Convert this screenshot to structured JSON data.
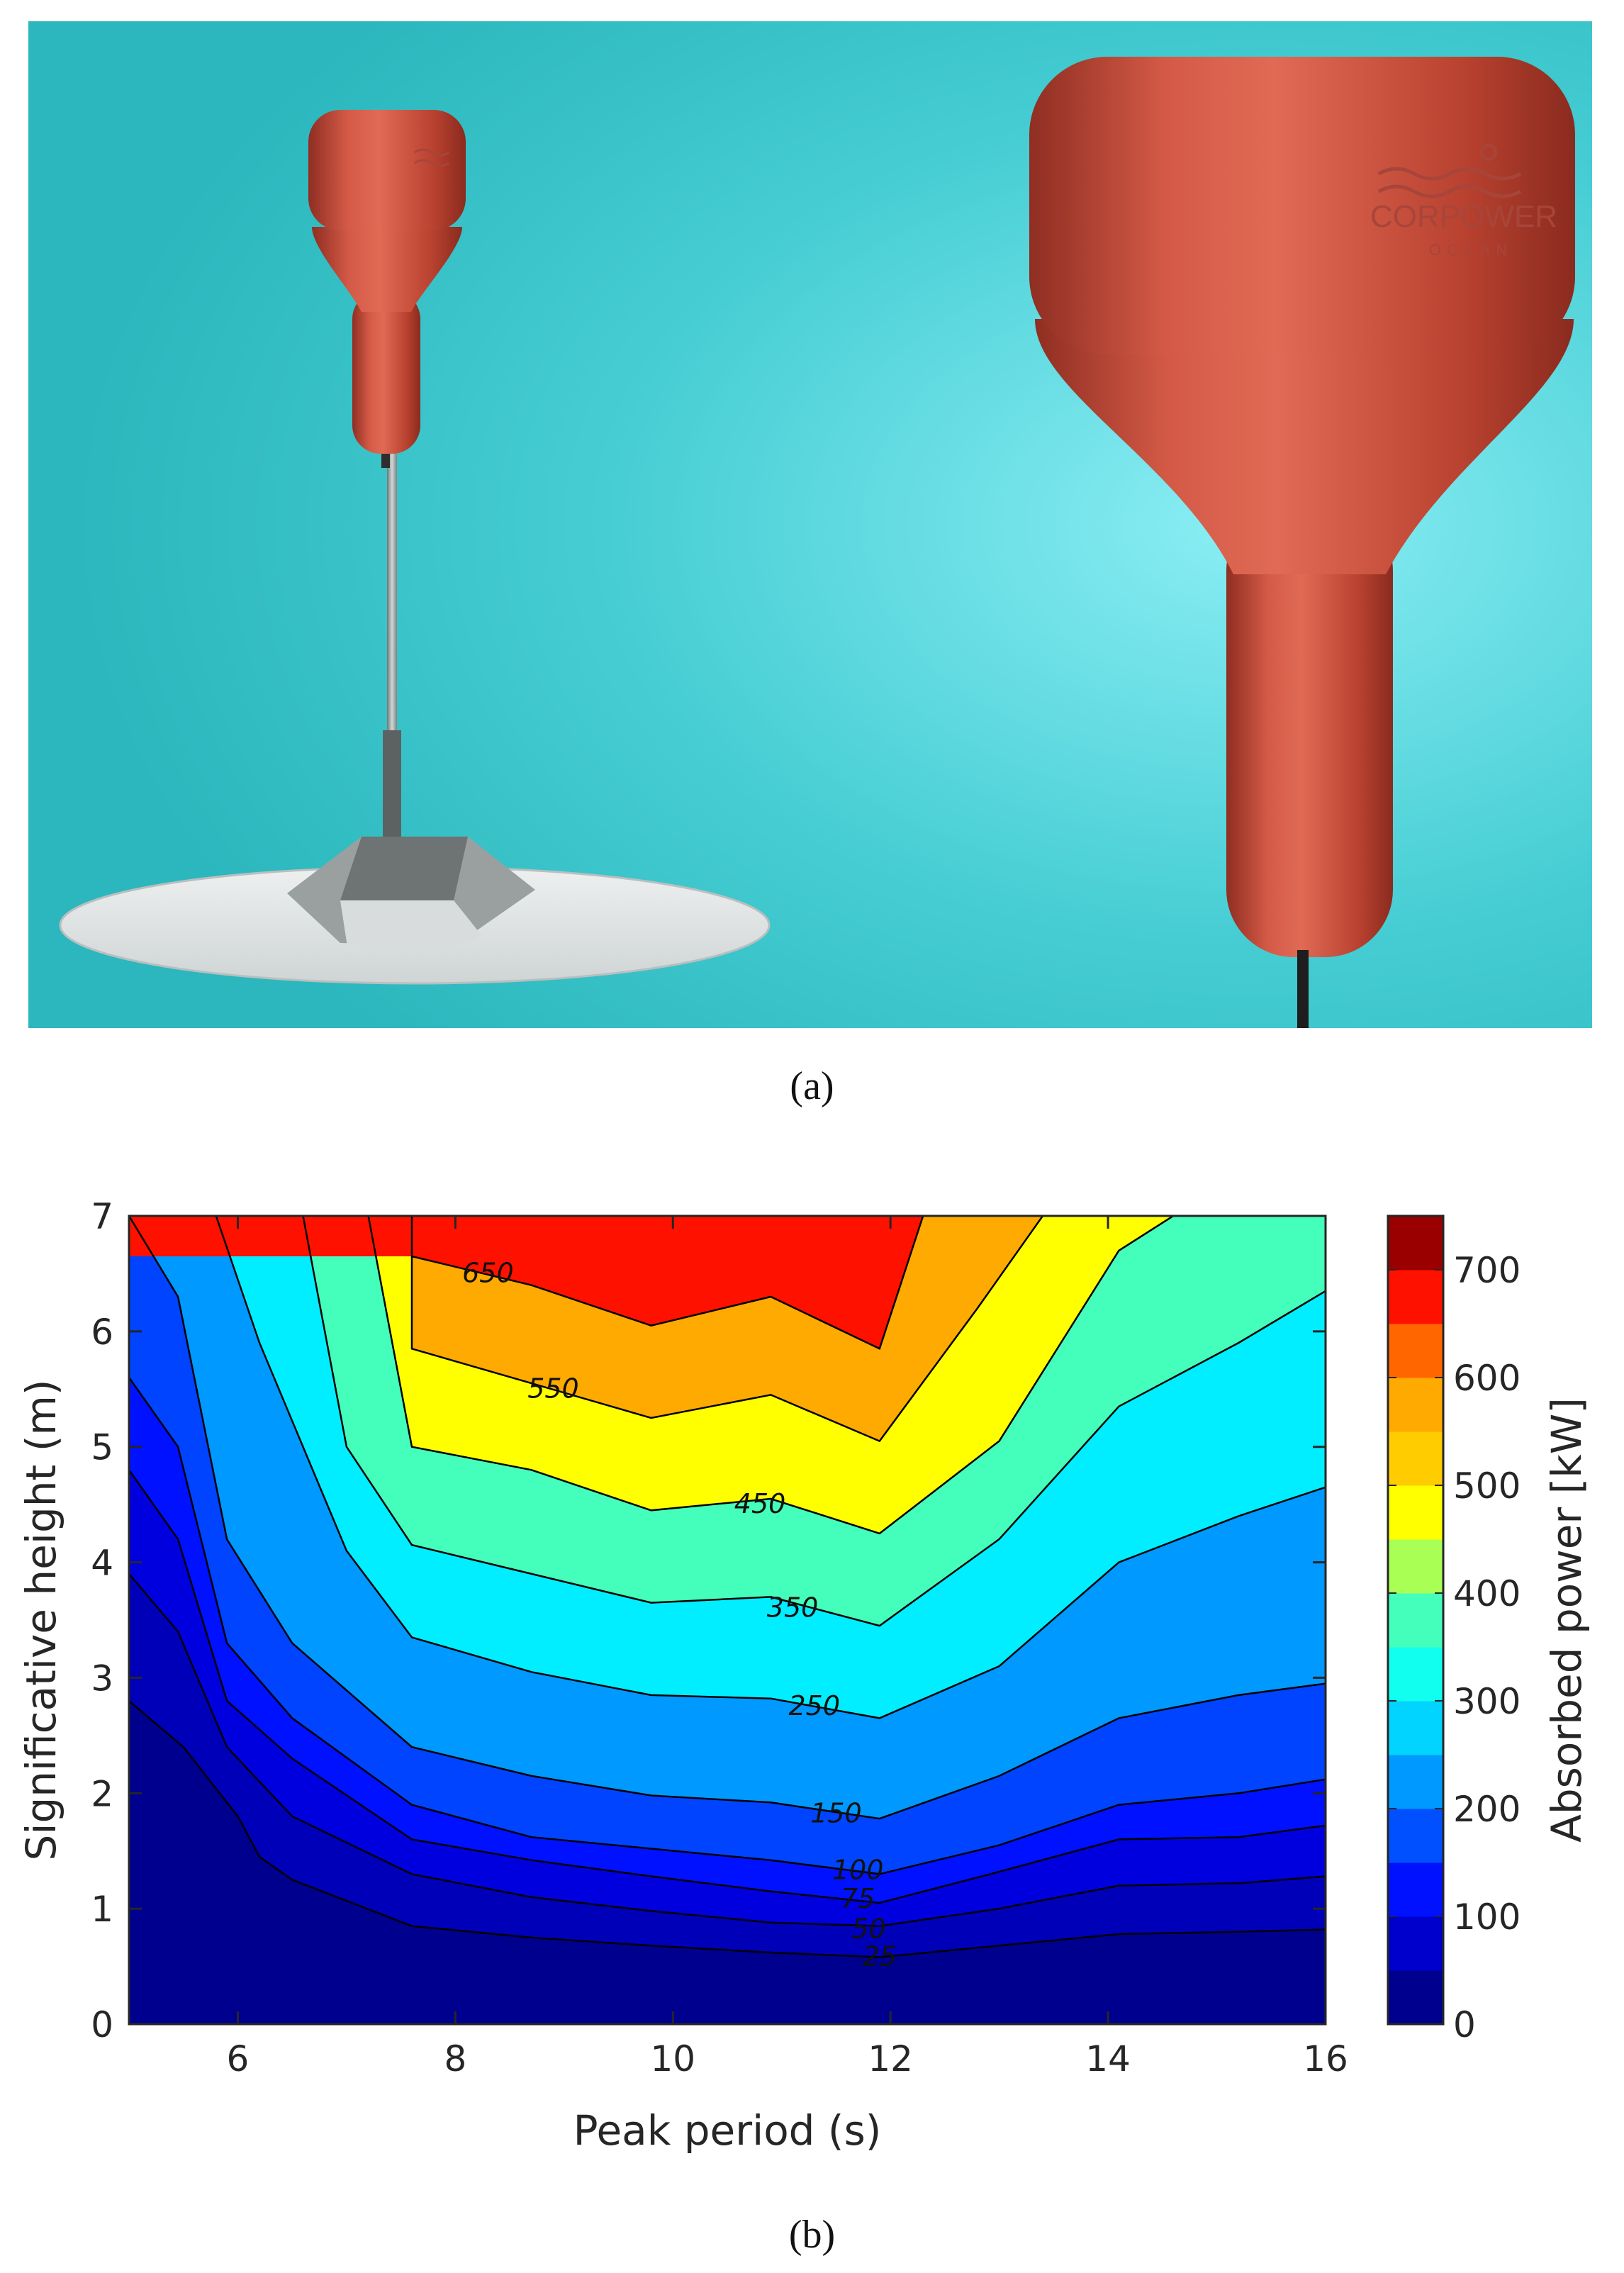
{
  "panels": {
    "a": {
      "caption": "(a)"
    },
    "b": {
      "caption": "(b)"
    }
  },
  "photo": {
    "logo_text": "CORPOWER",
    "logo_subtext": "OCEAN",
    "colors": {
      "background": "#3fc9cf",
      "buoy": "#c84a3a",
      "seabed_disc": "#e4e6e6"
    }
  },
  "chart_data": {
    "type": "contourf",
    "xlabel": "Peak period (s)",
    "ylabel": "Significative height (m)",
    "colorbar_label": "Absorbed power [kW]",
    "xlim": [
      5,
      16
    ],
    "ylim": [
      0,
      7
    ],
    "x_ticks": [
      6,
      8,
      10,
      12,
      14,
      16
    ],
    "y_ticks": [
      0,
      1,
      2,
      3,
      4,
      5,
      6,
      7
    ],
    "colorbar_lim": [
      0,
      750
    ],
    "colorbar_ticks": [
      0,
      100,
      200,
      300,
      400,
      500,
      600,
      700
    ],
    "levels": [
      0,
      25,
      50,
      75,
      100,
      150,
      250,
      350,
      450,
      550,
      650,
      750
    ],
    "band_colors": [
      "#00008f",
      "#0000b8",
      "#0000df",
      "#0011ff",
      "#0044ff",
      "#0099ff",
      "#00eeff",
      "#44ffbb",
      "#ffff00",
      "#ffaa00",
      "#ff1100",
      "#9a0000"
    ],
    "colorbar_segments": [
      {
        "from": 0,
        "to": 50,
        "color": "#00008f"
      },
      {
        "from": 50,
        "to": 100,
        "color": "#0000cc"
      },
      {
        "from": 100,
        "to": 150,
        "color": "#0011ff"
      },
      {
        "from": 150,
        "to": 200,
        "color": "#0050ff"
      },
      {
        "from": 200,
        "to": 250,
        "color": "#0099ff"
      },
      {
        "from": 250,
        "to": 300,
        "color": "#00d4ff"
      },
      {
        "from": 300,
        "to": 350,
        "color": "#11ffee"
      },
      {
        "from": 350,
        "to": 400,
        "color": "#44ffbb"
      },
      {
        "from": 400,
        "to": 450,
        "color": "#aaff55"
      },
      {
        "from": 450,
        "to": 500,
        "color": "#ffff00"
      },
      {
        "from": 500,
        "to": 550,
        "color": "#ffcc00"
      },
      {
        "from": 550,
        "to": 600,
        "color": "#ffaa00"
      },
      {
        "from": 600,
        "to": 650,
        "color": "#ff6600"
      },
      {
        "from": 650,
        "to": 700,
        "color": "#ff1100"
      },
      {
        "from": 700,
        "to": 750,
        "color": "#9a0000"
      }
    ],
    "contour_lines": [
      {
        "level": 25,
        "label": "25",
        "points": [
          [
            5.0,
            2.8
          ],
          [
            5.5,
            2.4
          ],
          [
            6.0,
            1.8
          ],
          [
            6.2,
            1.45
          ],
          [
            6.5,
            1.25
          ],
          [
            7.6,
            0.85
          ],
          [
            8.7,
            0.75
          ],
          [
            9.8,
            0.68
          ],
          [
            10.9,
            0.62
          ],
          [
            11.9,
            0.58
          ],
          [
            13.0,
            0.68
          ],
          [
            14.1,
            0.78
          ],
          [
            15.2,
            0.8
          ],
          [
            16.0,
            0.82
          ]
        ],
        "label_at": [
          11.9,
          0.58
        ]
      },
      {
        "level": 50,
        "label": "50",
        "points": [
          [
            5.0,
            3.9
          ],
          [
            5.45,
            3.4
          ],
          [
            5.9,
            2.4
          ],
          [
            6.5,
            1.8
          ],
          [
            7.6,
            1.3
          ],
          [
            8.7,
            1.1
          ],
          [
            9.8,
            0.98
          ],
          [
            10.9,
            0.88
          ],
          [
            11.9,
            0.85
          ],
          [
            13.0,
            1.0
          ],
          [
            14.1,
            1.2
          ],
          [
            15.2,
            1.22
          ],
          [
            16.0,
            1.28
          ]
        ],
        "label_at": [
          11.8,
          0.82
        ]
      },
      {
        "level": 75,
        "label": "75",
        "points": [
          [
            5.0,
            4.8
          ],
          [
            5.45,
            4.2
          ],
          [
            5.9,
            2.8
          ],
          [
            6.5,
            2.3
          ],
          [
            7.6,
            1.6
          ],
          [
            8.7,
            1.42
          ],
          [
            9.8,
            1.28
          ],
          [
            10.9,
            1.15
          ],
          [
            11.9,
            1.05
          ],
          [
            13.0,
            1.32
          ],
          [
            14.1,
            1.6
          ],
          [
            15.2,
            1.62
          ],
          [
            16.0,
            1.72
          ]
        ],
        "label_at": [
          11.7,
          1.08
        ]
      },
      {
        "level": 100,
        "label": "100",
        "points": [
          [
            5.0,
            5.6
          ],
          [
            5.45,
            5.0
          ],
          [
            5.9,
            3.3
          ],
          [
            6.5,
            2.65
          ],
          [
            7.6,
            1.9
          ],
          [
            8.7,
            1.62
          ],
          [
            9.8,
            1.52
          ],
          [
            10.9,
            1.42
          ],
          [
            11.9,
            1.3
          ],
          [
            13.0,
            1.55
          ],
          [
            14.1,
            1.9
          ],
          [
            15.2,
            2.0
          ],
          [
            16.0,
            2.12
          ]
        ],
        "label_at": [
          11.7,
          1.33
        ]
      },
      {
        "level": 150,
        "label": "150",
        "points": [
          [
            5.0,
            7.0
          ],
          [
            5.45,
            6.3
          ],
          [
            5.9,
            4.2
          ],
          [
            6.5,
            3.3
          ],
          [
            7.6,
            2.4
          ],
          [
            8.7,
            2.15
          ],
          [
            9.8,
            1.98
          ],
          [
            10.9,
            1.92
          ],
          [
            11.9,
            1.78
          ],
          [
            13.0,
            2.15
          ],
          [
            14.1,
            2.65
          ],
          [
            15.2,
            2.85
          ],
          [
            16.0,
            2.95
          ]
        ],
        "label_at": [
          11.5,
          1.82
        ]
      },
      {
        "level": 250,
        "label": "250",
        "points": [
          [
            5.8,
            7.0
          ],
          [
            6.2,
            5.9
          ],
          [
            7.0,
            4.1
          ],
          [
            7.6,
            3.35
          ],
          [
            8.7,
            3.05
          ],
          [
            9.8,
            2.85
          ],
          [
            10.9,
            2.82
          ],
          [
            11.9,
            2.65
          ],
          [
            13.0,
            3.1
          ],
          [
            14.1,
            4.0
          ],
          [
            15.2,
            4.4
          ],
          [
            16.0,
            4.65
          ]
        ],
        "label_at": [
          11.3,
          2.75
        ]
      },
      {
        "level": 350,
        "label": "350",
        "points": [
          [
            6.6,
            7.0
          ],
          [
            7.0,
            5.0
          ],
          [
            7.6,
            4.15
          ],
          [
            8.7,
            3.9
          ],
          [
            9.8,
            3.65
          ],
          [
            10.9,
            3.7
          ],
          [
            11.9,
            3.45
          ],
          [
            13.0,
            4.2
          ],
          [
            14.1,
            5.35
          ],
          [
            15.2,
            5.9
          ],
          [
            16.0,
            6.35
          ]
        ],
        "label_at": [
          11.1,
          3.6
        ]
      },
      {
        "level": 450,
        "label": "450",
        "points": [
          [
            7.2,
            7.0
          ],
          [
            7.6,
            5.0
          ],
          [
            8.7,
            4.8
          ],
          [
            9.8,
            4.45
          ],
          [
            10.9,
            4.55
          ],
          [
            11.9,
            4.25
          ],
          [
            13.0,
            5.05
          ],
          [
            13.6,
            5.95
          ],
          [
            14.1,
            6.7
          ],
          [
            14.6,
            7.0
          ]
        ],
        "label_at": [
          10.8,
          4.5
        ]
      },
      {
        "level": 550,
        "label": "550",
        "points": [
          [
            7.6,
            7.0
          ],
          [
            7.6,
            5.85
          ],
          [
            8.7,
            5.55
          ],
          [
            9.8,
            5.25
          ],
          [
            10.9,
            5.45
          ],
          [
            11.9,
            5.05
          ],
          [
            12.8,
            6.2
          ],
          [
            13.4,
            7.0
          ]
        ],
        "label_at": [
          8.9,
          5.5
        ]
      },
      {
        "level": 650,
        "label": "650",
        "points": [
          [
            7.6,
            6.65
          ],
          [
            8.7,
            6.4
          ],
          [
            9.8,
            6.05
          ],
          [
            10.9,
            6.3
          ],
          [
            11.9,
            5.85
          ],
          [
            12.3,
            7.0
          ]
        ],
        "label_at": [
          8.3,
          6.5
        ]
      }
    ]
  }
}
